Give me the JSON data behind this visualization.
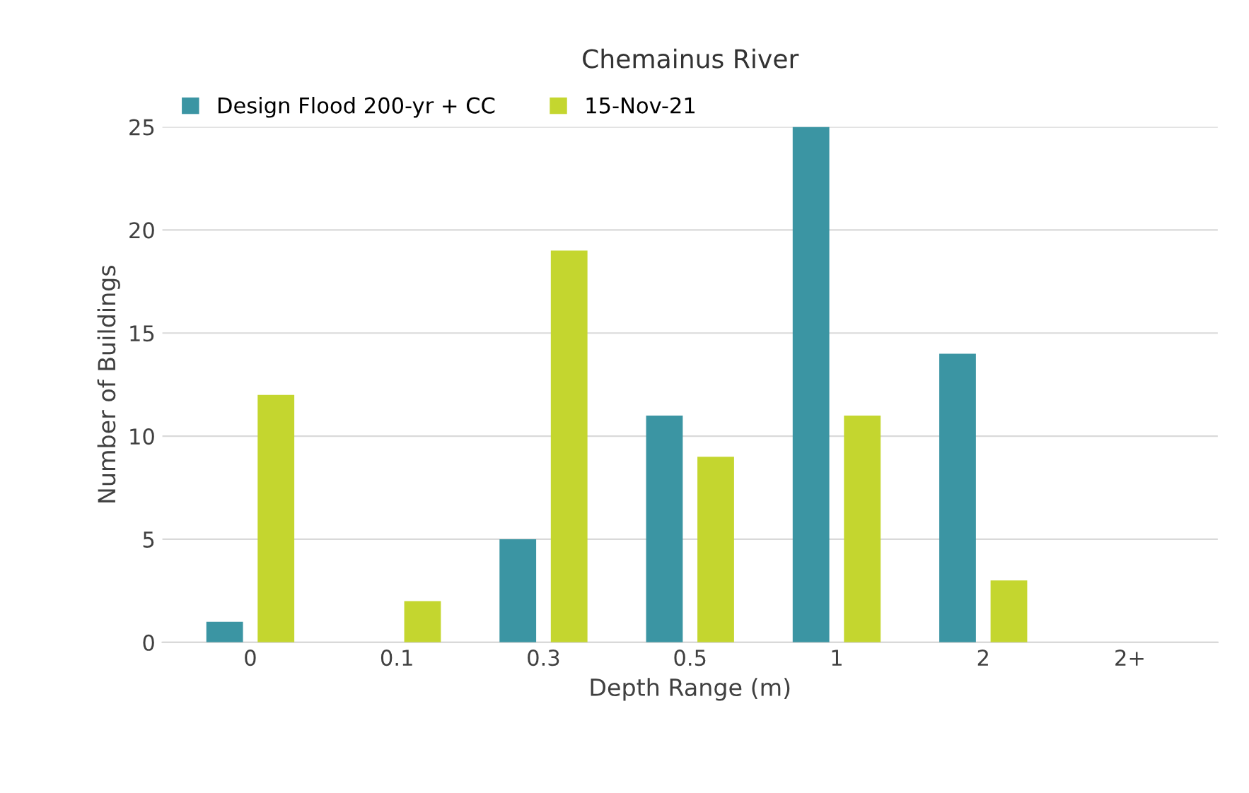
{
  "chart_data": {
    "type": "bar",
    "title": "Chemainus River",
    "xlabel": "Depth Range (m)",
    "ylabel": "Number of Buildings",
    "categories": [
      "0",
      "0.1",
      "0.3",
      "0.5",
      "1",
      "2",
      "2+"
    ],
    "series": [
      {
        "name": "Design Flood 200-yr + CC",
        "color": "#3b95a3",
        "values": [
          1,
          0,
          5,
          11,
          25,
          14,
          0
        ]
      },
      {
        "name": "15-Nov-21",
        "color": "#c4d62f",
        "values": [
          12,
          2,
          19,
          9,
          11,
          3,
          0
        ]
      }
    ],
    "ylim": [
      0,
      25
    ],
    "yticks": [
      0,
      5,
      10,
      15,
      20,
      25
    ],
    "grid": "y",
    "legend": "top left"
  }
}
